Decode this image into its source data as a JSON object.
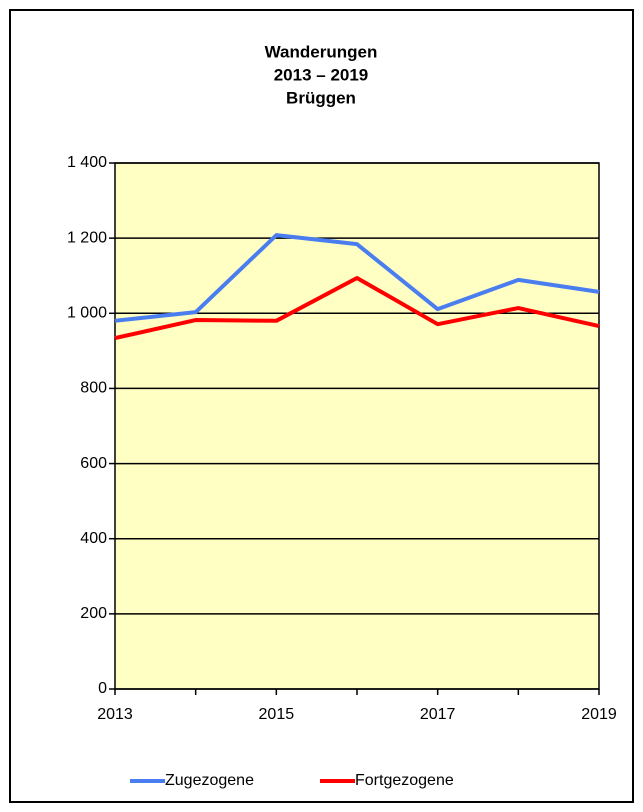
{
  "chart_data": {
    "type": "line",
    "title": [
      "Wanderungen",
      "2013 – 2019",
      "Brüggen"
    ],
    "x": [
      2013,
      2014,
      2015,
      2016,
      2017,
      2018,
      2019
    ],
    "series": [
      {
        "name": "Zugezogene",
        "color": "#4a7ef0",
        "values": [
          980,
          1003,
          1208,
          1184,
          1011,
          1089,
          1057
        ]
      },
      {
        "name": "Fortgezogene",
        "color": "#ff0000",
        "values": [
          934,
          982,
          980,
          1094,
          971,
          1014,
          966
        ]
      }
    ],
    "xlim": [
      2013,
      2019
    ],
    "xticks": [
      2013,
      2015,
      2017,
      2019
    ],
    "ylim": [
      0,
      1400
    ],
    "yticks": [
      0,
      200,
      400,
      600,
      800,
      {
        "value": 1000,
        "label": "1 000"
      },
      {
        "value": 1200,
        "label": "1 200"
      },
      {
        "value": 1400,
        "label": "1 400"
      }
    ],
    "grid": true,
    "legend": "bottom",
    "plot_background": "#ffffc4"
  }
}
